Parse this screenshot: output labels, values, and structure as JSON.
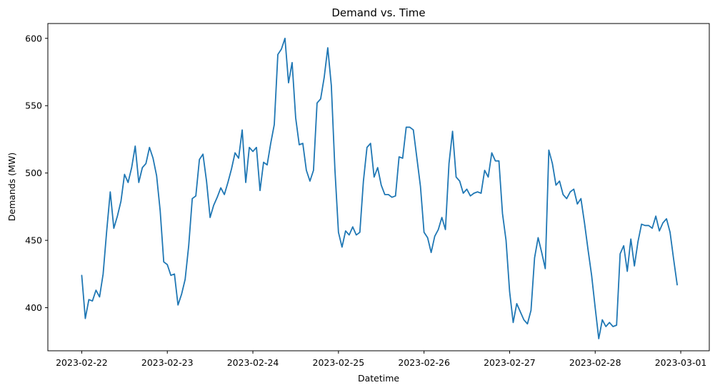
{
  "chart_data": {
    "type": "line",
    "title": "Demand vs. Time",
    "xlabel": "Datetime",
    "ylabel": "Demands (MW)",
    "x_unit": "hours since 2023-02-22 00:00",
    "xlim_hours": [
      -9.5,
      176
    ],
    "ylim": [
      368,
      611
    ],
    "y_ticks": [
      400,
      450,
      500,
      550,
      600
    ],
    "x_ticks": [
      {
        "hour": 0,
        "label": "2023-02-22"
      },
      {
        "hour": 24,
        "label": "2023-02-23"
      },
      {
        "hour": 48,
        "label": "2023-02-24"
      },
      {
        "hour": 72,
        "label": "2023-02-25"
      },
      {
        "hour": 96,
        "label": "2023-02-26"
      },
      {
        "hour": 120,
        "label": "2023-02-27"
      },
      {
        "hour": 144,
        "label": "2023-02-28"
      },
      {
        "hour": 168,
        "label": "2023-03-01"
      }
    ],
    "grid": false,
    "legend": false,
    "series": [
      {
        "name": "",
        "color": "#1f77b4",
        "points": [
          [
            0,
            424
          ],
          [
            1,
            392
          ],
          [
            2,
            406
          ],
          [
            3,
            405
          ],
          [
            4,
            413
          ],
          [
            5,
            408
          ],
          [
            6,
            425
          ],
          [
            7,
            457
          ],
          [
            8,
            486
          ],
          [
            9,
            459
          ],
          [
            10,
            468
          ],
          [
            11,
            479
          ],
          [
            12,
            499
          ],
          [
            13,
            493
          ],
          [
            14,
            504
          ],
          [
            15,
            520
          ],
          [
            16,
            493
          ],
          [
            17,
            504
          ],
          [
            18,
            507
          ],
          [
            19,
            519
          ],
          [
            20,
            511
          ],
          [
            21,
            498
          ],
          [
            22,
            472
          ],
          [
            23,
            434
          ],
          [
            24,
            432
          ],
          [
            25,
            424
          ],
          [
            26,
            425
          ],
          [
            27,
            402
          ],
          [
            28,
            410
          ],
          [
            29,
            421
          ],
          [
            30,
            446
          ],
          [
            31,
            481
          ],
          [
            32,
            483
          ],
          [
            33,
            510
          ],
          [
            34,
            514
          ],
          [
            35,
            494
          ],
          [
            36,
            467
          ],
          [
            37,
            476
          ],
          [
            38,
            482
          ],
          [
            39,
            489
          ],
          [
            40,
            484
          ],
          [
            41,
            493
          ],
          [
            42,
            503
          ],
          [
            43,
            515
          ],
          [
            44,
            511
          ],
          [
            45,
            532
          ],
          [
            46,
            493
          ],
          [
            47,
            519
          ],
          [
            48,
            516
          ],
          [
            49,
            519
          ],
          [
            50,
            487
          ],
          [
            51,
            508
          ],
          [
            52,
            506
          ],
          [
            53,
            522
          ],
          [
            54,
            536
          ],
          [
            55,
            588
          ],
          [
            56,
            592
          ],
          [
            57,
            600
          ],
          [
            58,
            567
          ],
          [
            59,
            582
          ],
          [
            60,
            541
          ],
          [
            61,
            521
          ],
          [
            62,
            522
          ],
          [
            63,
            502
          ],
          [
            64,
            494
          ],
          [
            65,
            502
          ],
          [
            66,
            552
          ],
          [
            67,
            555
          ],
          [
            68,
            571
          ],
          [
            69,
            593
          ],
          [
            70,
            565
          ],
          [
            71,
            503
          ],
          [
            72,
            456
          ],
          [
            73,
            445
          ],
          [
            74,
            457
          ],
          [
            75,
            454
          ],
          [
            76,
            460
          ],
          [
            77,
            454
          ],
          [
            78,
            456
          ],
          [
            79,
            494
          ],
          [
            80,
            519
          ],
          [
            81,
            522
          ],
          [
            82,
            497
          ],
          [
            83,
            504
          ],
          [
            84,
            491
          ],
          [
            85,
            484
          ],
          [
            86,
            484
          ],
          [
            87,
            482
          ],
          [
            88,
            483
          ],
          [
            89,
            512
          ],
          [
            90,
            511
          ],
          [
            91,
            534
          ],
          [
            92,
            534
          ],
          [
            93,
            532
          ],
          [
            94,
            511
          ],
          [
            95,
            490
          ],
          [
            96,
            456
          ],
          [
            97,
            452
          ],
          [
            98,
            441
          ],
          [
            99,
            453
          ],
          [
            100,
            458
          ],
          [
            101,
            467
          ],
          [
            102,
            458
          ],
          [
            103,
            507
          ],
          [
            104,
            531
          ],
          [
            105,
            497
          ],
          [
            106,
            494
          ],
          [
            107,
            485
          ],
          [
            108,
            488
          ],
          [
            109,
            483
          ],
          [
            110,
            485
          ],
          [
            111,
            486
          ],
          [
            112,
            485
          ],
          [
            113,
            502
          ],
          [
            114,
            497
          ],
          [
            115,
            515
          ],
          [
            116,
            509
          ],
          [
            117,
            509
          ],
          [
            118,
            470
          ],
          [
            119,
            450
          ],
          [
            120,
            412
          ],
          [
            121,
            389
          ],
          [
            122,
            403
          ],
          [
            123,
            397
          ],
          [
            124,
            391
          ],
          [
            125,
            388
          ],
          [
            126,
            398
          ],
          [
            127,
            437
          ],
          [
            128,
            452
          ],
          [
            129,
            441
          ],
          [
            130,
            429
          ],
          [
            131,
            517
          ],
          [
            132,
            507
          ],
          [
            133,
            491
          ],
          [
            134,
            494
          ],
          [
            135,
            484
          ],
          [
            136,
            481
          ],
          [
            137,
            486
          ],
          [
            138,
            488
          ],
          [
            139,
            477
          ],
          [
            140,
            481
          ],
          [
            141,
            463
          ],
          [
            142,
            443
          ],
          [
            143,
            424
          ],
          [
            144,
            400
          ],
          [
            145,
            377
          ],
          [
            146,
            391
          ],
          [
            147,
            386
          ],
          [
            148,
            389
          ],
          [
            149,
            386
          ],
          [
            150,
            387
          ],
          [
            151,
            440
          ],
          [
            152,
            446
          ],
          [
            153,
            427
          ],
          [
            154,
            451
          ],
          [
            155,
            431
          ],
          [
            156,
            449
          ],
          [
            157,
            462
          ],
          [
            158,
            461
          ],
          [
            159,
            461
          ],
          [
            160,
            459
          ],
          [
            161,
            468
          ],
          [
            162,
            457
          ],
          [
            163,
            463
          ],
          [
            164,
            466
          ],
          [
            165,
            456
          ],
          [
            166,
            436
          ],
          [
            167,
            417
          ]
        ]
      }
    ]
  }
}
